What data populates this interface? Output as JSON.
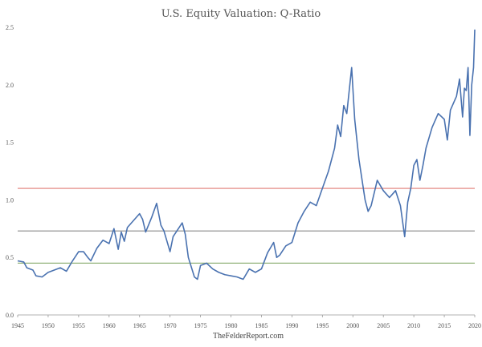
{
  "chart_data": {
    "type": "line",
    "title": "U.S. Equity Valuation: Q-Ratio",
    "footer": "TheFelderReport.com",
    "xlabel": "",
    "ylabel": "",
    "xlim": [
      1945,
      2020
    ],
    "ylim": [
      0,
      2.5
    ],
    "x_ticks": [
      1945,
      1950,
      1955,
      1960,
      1965,
      1970,
      1975,
      1980,
      1985,
      1990,
      1995,
      2000,
      2005,
      2010,
      2015,
      2020
    ],
    "y_ticks": [
      "0.0",
      "0.5",
      "1.0",
      "1.5",
      "2.0",
      "2.5"
    ],
    "grid": false,
    "series": [
      {
        "color": "#4a72b0",
        "x": [
          1945,
          1946,
          1946.5,
          1947.5,
          1948,
          1949,
          1950,
          1951,
          1952,
          1953,
          1954,
          1955,
          1955.8,
          1956.5,
          1957,
          1958,
          1959,
          1960,
          1960.8,
          1961.5,
          1962,
          1962.5,
          1963,
          1964,
          1965,
          1965.5,
          1966,
          1967,
          1967.8,
          1968.5,
          1969,
          1970,
          1970.5,
          1971,
          1972,
          1972.5,
          1973,
          1974,
          1974.5,
          1975,
          1976,
          1977,
          1978,
          1979,
          1980,
          1981,
          1982,
          1983,
          1984,
          1985,
          1986,
          1987,
          1987.5,
          1988,
          1989,
          1990,
          1991,
          1992,
          1993,
          1994,
          1995,
          1996,
          1997,
          1997.5,
          1998,
          1998.5,
          1999,
          1999.8,
          2000.3,
          2001,
          2002,
          2002.5,
          2003,
          2004,
          2005,
          2006,
          2007,
          2007.8,
          2008.5,
          2009,
          2009.5,
          2010,
          2010.5,
          2011,
          2011.5,
          2012,
          2013,
          2014,
          2015,
          2015.5,
          2016,
          2017,
          2017.5,
          2018,
          2018.3,
          2018.6,
          2018.9,
          2019.2,
          2019.5,
          2019.8,
          2020
        ],
        "values": [
          0.47,
          0.46,
          0.41,
          0.39,
          0.34,
          0.33,
          0.37,
          0.39,
          0.41,
          0.38,
          0.47,
          0.55,
          0.55,
          0.5,
          0.47,
          0.58,
          0.65,
          0.62,
          0.75,
          0.57,
          0.72,
          0.64,
          0.76,
          0.82,
          0.88,
          0.83,
          0.72,
          0.85,
          0.97,
          0.78,
          0.73,
          0.55,
          0.68,
          0.72,
          0.8,
          0.7,
          0.5,
          0.33,
          0.31,
          0.43,
          0.45,
          0.4,
          0.37,
          0.35,
          0.34,
          0.33,
          0.31,
          0.4,
          0.37,
          0.4,
          0.54,
          0.63,
          0.5,
          0.52,
          0.6,
          0.63,
          0.8,
          0.9,
          0.98,
          0.95,
          1.1,
          1.25,
          1.45,
          1.65,
          1.55,
          1.82,
          1.75,
          2.15,
          1.7,
          1.35,
          1.0,
          0.9,
          0.95,
          1.17,
          1.08,
          1.02,
          1.08,
          0.95,
          0.68,
          0.98,
          1.1,
          1.3,
          1.35,
          1.17,
          1.3,
          1.45,
          1.63,
          1.75,
          1.7,
          1.52,
          1.78,
          1.9,
          2.05,
          1.72,
          1.97,
          1.95,
          2.15,
          1.56,
          2.0,
          2.15,
          2.48
        ]
      }
    ],
    "reference_lines": [
      {
        "value": 1.1,
        "color": "#e07b74"
      },
      {
        "value": 0.73,
        "color": "#8a8a8a"
      },
      {
        "value": 0.45,
        "color": "#93b27a"
      }
    ]
  }
}
